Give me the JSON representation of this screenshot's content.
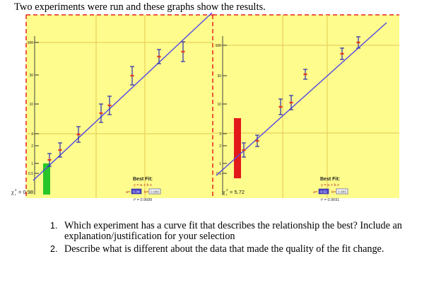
{
  "intro_text": "Two experiments were run and these graphs show the results.",
  "colors": {
    "plot_bg": "#fdfc8c",
    "dash_border": "#e8211a",
    "fit_line": "#5247e6",
    "points": "#e83b1a",
    "error_bars": "#2b2bb0",
    "gridlines": "#e9d25c",
    "green_bar": "#29c629",
    "red_bar": "#e31a1a"
  },
  "chart_data": [
    {
      "type": "scatter",
      "scale": "log",
      "y_tick_labels": [
        "100",
        "30",
        "10",
        "3",
        "2",
        "1",
        "0.5"
      ],
      "fit_title": "Best Fit:",
      "fit_equation": "y = a + b x",
      "a_label": "a=",
      "a_value": "0.34",
      "b_label": "b=",
      "b_value": "0.989",
      "r2_label": "r² = 0.9689",
      "chi_label": "χ",
      "chi_sup": "2",
      "chi_sub": "r",
      "chi_value": "= 0.98",
      "residual_bar_color": "green"
    },
    {
      "type": "scatter",
      "scale": "log",
      "y_tick_labels": [
        "100",
        "30",
        "10",
        "3",
        "2",
        "1",
        "0.5"
      ],
      "fit_title": "Best Fit:",
      "fit_equation": "y = a + b x",
      "a_label": "a=",
      "a_value": "0.52",
      "b_label": "b=",
      "b_value": "0.966",
      "r2_label": "r² = 0.9691",
      "chi_label": "χ",
      "chi_sup": "2",
      "chi_sub": "r",
      "chi_value": "= 5.72",
      "residual_bar_color": "red"
    }
  ],
  "questions": [
    {
      "number": "1.",
      "text": "Which experiment has a curve fit that describes the relationship the best? Include an explanation/justification for your selection"
    },
    {
      "number": "2.",
      "text": "Describe what is different about the data that made the quality of the fit change."
    }
  ]
}
